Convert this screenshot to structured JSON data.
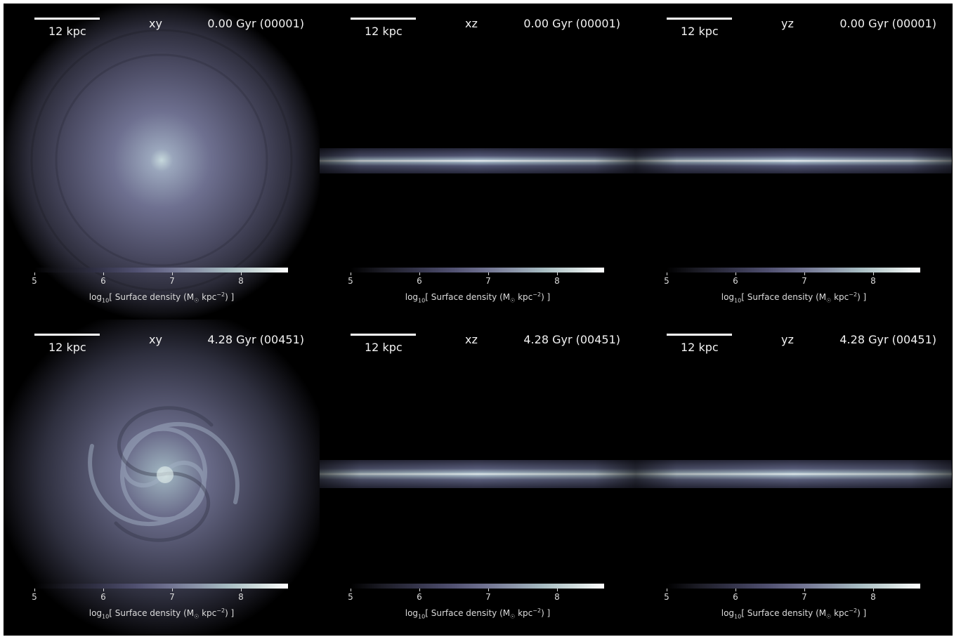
{
  "colorbar": {
    "ticks": [
      "5",
      "6",
      "7",
      "8"
    ],
    "label_pre": "log",
    "label_sub": "10",
    "label_mid": "[ Surface density (M",
    "label_sun": "☉",
    "label_unit": " kpc",
    "label_exp": "−2",
    "label_post": ") ]"
  },
  "panels": [
    {
      "scale": "12 kpc",
      "projection": "xy",
      "time": "0.00 Gyr (00001)"
    },
    {
      "scale": "12 kpc",
      "projection": "xz",
      "time": "0.00 Gyr (00001)"
    },
    {
      "scale": "12 kpc",
      "projection": "yz",
      "time": "0.00 Gyr (00001)"
    },
    {
      "scale": "12 kpc",
      "projection": "xy",
      "time": "4.28 Gyr (00451)"
    },
    {
      "scale": "12 kpc",
      "projection": "xz",
      "time": "4.28 Gyr (00451)"
    },
    {
      "scale": "12 kpc",
      "projection": "yz",
      "time": "4.28 Gyr (00451)"
    }
  ]
}
